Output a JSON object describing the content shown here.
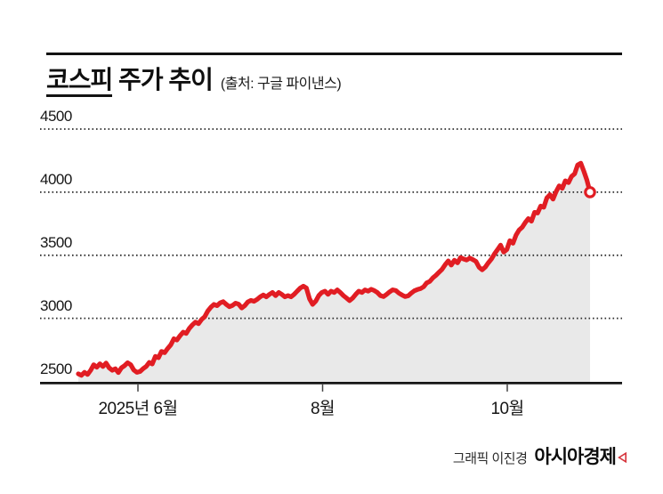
{
  "header": {
    "title_underlined": "코스피",
    "title_rest": " 주가 추이",
    "source": "(출처: 구글 파이낸스)"
  },
  "footer": {
    "credit": "그래픽 이진경",
    "brand": "아시아경제"
  },
  "chart_data": {
    "type": "area",
    "title": "코스피 주가 추이",
    "source": "구글 파이낸스",
    "legend": "none",
    "grid": "dotted horizontal",
    "x_axis": {
      "tick_labels": [
        "2025년 6월",
        "8월",
        "10월"
      ]
    },
    "y_axis": {
      "min": 2500,
      "max": 4500,
      "ticks": [
        4500,
        4000,
        3500,
        3000,
        2500
      ]
    },
    "series": {
      "name": "코스피",
      "values": [
        2560,
        2548,
        2572,
        2555,
        2588,
        2632,
        2612,
        2640,
        2618,
        2645,
        2608,
        2588,
        2600,
        2570,
        2608,
        2625,
        2648,
        2632,
        2590,
        2572,
        2578,
        2600,
        2618,
        2650,
        2638,
        2698,
        2688,
        2738,
        2728,
        2762,
        2790,
        2838,
        2828,
        2862,
        2890,
        2880,
        2920,
        2948,
        2970,
        2958,
        2992,
        3012,
        3058,
        3088,
        3110,
        3100,
        3122,
        3132,
        3110,
        3092,
        3102,
        3120,
        3112,
        3082,
        3100,
        3130,
        3142,
        3135,
        3150,
        3170,
        3185,
        3170,
        3190,
        3205,
        3180,
        3205,
        3190,
        3170,
        3180,
        3170,
        3190,
        3215,
        3240,
        3255,
        3240,
        3155,
        3110,
        3135,
        3180,
        3205,
        3215,
        3190,
        3215,
        3205,
        3225,
        3205,
        3180,
        3160,
        3140,
        3160,
        3190,
        3215,
        3205,
        3225,
        3215,
        3230,
        3220,
        3205,
        3180,
        3172,
        3190,
        3210,
        3226,
        3220,
        3200,
        3185,
        3172,
        3178,
        3200,
        3218,
        3228,
        3235,
        3250,
        3280,
        3292,
        3320,
        3340,
        3365,
        3388,
        3425,
        3455,
        3422,
        3460,
        3440,
        3482,
        3470,
        3462,
        3478,
        3465,
        3452,
        3405,
        3385,
        3405,
        3440,
        3470,
        3510,
        3545,
        3580,
        3525,
        3545,
        3615,
        3595,
        3660,
        3700,
        3722,
        3760,
        3790,
        3770,
        3840,
        3835,
        3890,
        3880,
        3955,
        3980,
        3945,
        4005,
        4050,
        4030,
        4090,
        4075,
        4125,
        4145,
        4215,
        4230,
        4165,
        4095,
        4000
      ]
    },
    "peak_value": 4230,
    "end_marker": {
      "value": 4000,
      "style": "open-circle"
    },
    "colors": {
      "line": "#e11d23",
      "fill": "#e9e9e9",
      "grid": "#2e2e2e",
      "axis": "#161616"
    }
  }
}
